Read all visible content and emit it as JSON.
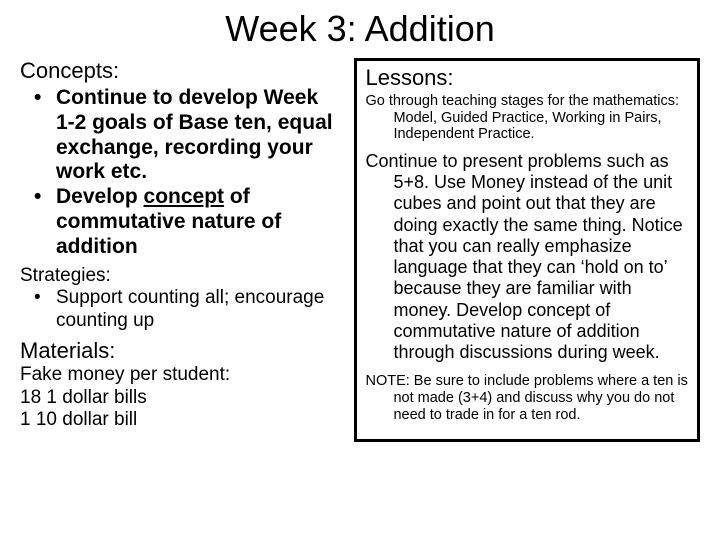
{
  "title": "Week 3: Addition",
  "left": {
    "concepts_heading": "Concepts:",
    "concept_1": "Continue to develop Week 1-2 goals of Base ten, equal exchange, recording your work etc.",
    "concept_2_a": "Develop ",
    "concept_2_u": "concept",
    "concept_2_b": " of commutative nature of addition",
    "strategies_heading": "Strategies:",
    "strategy_1": "Support counting all; encourage counting up",
    "materials_heading": "Materials:",
    "materials_line1": "Fake money per student:",
    "materials_line2": "18 1 dollar bills",
    "materials_line3": "1  10 dollar bill"
  },
  "right": {
    "lessons_heading": "Lessons:",
    "intro": "Go through teaching stages for the mathematics: Model, Guided Practice, Working in Pairs, Independent Practice.",
    "body": "Continue to present problems such as 5+8.  Use Money instead of the unit cubes and point out that they are doing exactly the same thing.  Notice that you can really emphasize language that they can ‘hold on to’ because they are familiar with money. Develop concept of commutative nature of addition through discussions during week.",
    "note": "NOTE: Be sure to include problems where a ten is not made (3+4) and discuss why you do not need to trade in for a ten rod."
  },
  "colors": {
    "bg": "#ffffff",
    "text": "#000000",
    "border": "#000000"
  }
}
